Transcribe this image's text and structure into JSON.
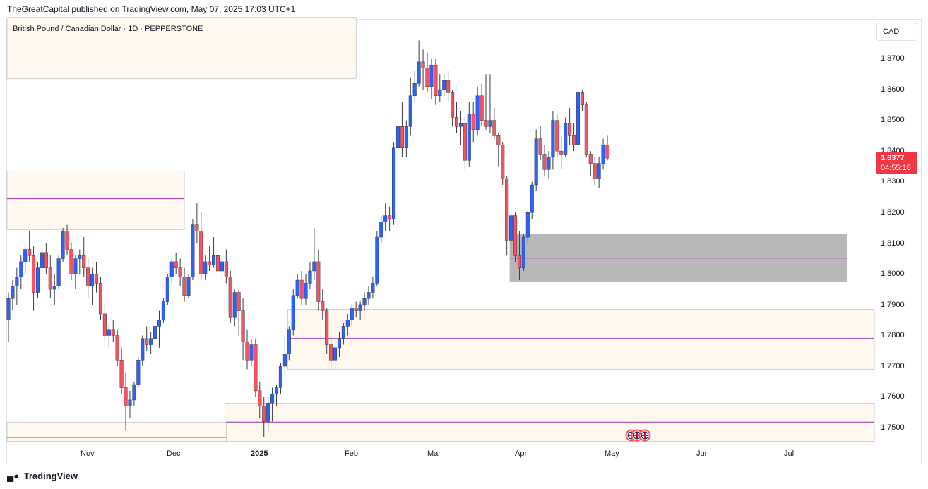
{
  "header": {
    "publish_text": "TheGreatCapital published on TradingView.com, May 07, 2025 17:03 UTC+1"
  },
  "symbol": {
    "title": "British Pound / Canadian Dollar · 1D · PEPPERSTONE"
  },
  "currency_button": {
    "label": "CAD"
  },
  "price_axis": {
    "labels": [
      "1.8700",
      "1.8600",
      "1.8500",
      "1.8400",
      "1.8300",
      "1.8200",
      "1.8100",
      "1.8000",
      "1.7900",
      "1.7800",
      "1.7700",
      "1.7600",
      "1.7500"
    ]
  },
  "time_axis": {
    "labels": [
      "Nov",
      "Dec",
      "2025",
      "Feb",
      "Mar",
      "Apr",
      "May",
      "Jun",
      "Jul"
    ]
  },
  "last_price": {
    "value": "1.8377",
    "countdown": "04:55:18",
    "color": "#f23645"
  },
  "footer": {
    "brand": "TradingView"
  },
  "colors": {
    "up": "#2962ff",
    "down": "#f7525f",
    "zone_fill": "#fff8ee",
    "demand_gray": "#b8b8bb",
    "level_line": "#9c27b0"
  },
  "chart_data": {
    "type": "candlestick",
    "title": "British Pound / Canadian Dollar · 1D · PEPPERSTONE",
    "ylim": [
      1.7455,
      1.8835
    ],
    "x_start": "2024-10-07",
    "candles": [
      [
        1.785,
        1.794,
        1.778,
        1.792
      ],
      [
        1.792,
        1.798,
        1.788,
        1.796
      ],
      [
        1.796,
        1.802,
        1.79,
        1.799
      ],
      [
        1.799,
        1.806,
        1.795,
        1.804
      ],
      [
        1.804,
        1.809,
        1.8,
        1.808
      ],
      [
        1.808,
        1.814,
        1.804,
        1.806
      ],
      [
        1.806,
        1.809,
        1.788,
        1.794
      ],
      [
        1.794,
        1.804,
        1.792,
        1.802
      ],
      [
        1.802,
        1.808,
        1.798,
        1.807
      ],
      [
        1.807,
        1.81,
        1.8,
        1.802
      ],
      [
        1.802,
        1.806,
        1.792,
        1.795
      ],
      [
        1.795,
        1.8,
        1.79,
        1.796
      ],
      [
        1.796,
        1.806,
        1.795,
        1.805
      ],
      [
        1.805,
        1.815,
        1.804,
        1.814
      ],
      [
        1.814,
        1.816,
        1.806,
        1.808
      ],
      [
        1.808,
        1.81,
        1.798,
        1.8
      ],
      [
        1.8,
        1.806,
        1.795,
        1.805
      ],
      [
        1.805,
        1.808,
        1.8,
        1.806
      ],
      [
        1.806,
        1.812,
        1.799,
        1.802
      ],
      [
        1.802,
        1.805,
        1.792,
        1.796
      ],
      [
        1.796,
        1.802,
        1.79,
        1.8
      ],
      [
        1.8,
        1.804,
        1.794,
        1.797
      ],
      [
        1.797,
        1.799,
        1.785,
        1.787
      ],
      [
        1.787,
        1.79,
        1.778,
        1.78
      ],
      [
        1.78,
        1.784,
        1.776,
        1.782
      ],
      [
        1.782,
        1.785,
        1.778,
        1.78
      ],
      [
        1.78,
        1.782,
        1.77,
        1.772
      ],
      [
        1.772,
        1.776,
        1.761,
        1.763
      ],
      [
        1.763,
        1.768,
        1.749,
        1.757
      ],
      [
        1.757,
        1.762,
        1.753,
        1.759
      ],
      [
        1.759,
        1.765,
        1.757,
        1.764
      ],
      [
        1.764,
        1.773,
        1.763,
        1.772
      ],
      [
        1.772,
        1.78,
        1.77,
        1.779
      ],
      [
        1.779,
        1.783,
        1.775,
        1.777
      ],
      [
        1.777,
        1.781,
        1.774,
        1.779
      ],
      [
        1.779,
        1.785,
        1.778,
        1.783
      ],
      [
        1.783,
        1.788,
        1.776,
        1.785
      ],
      [
        1.785,
        1.792,
        1.784,
        1.791
      ],
      [
        1.791,
        1.8,
        1.79,
        1.799
      ],
      [
        1.799,
        1.805,
        1.797,
        1.804
      ],
      [
        1.804,
        1.807,
        1.8,
        1.802
      ],
      [
        1.802,
        1.805,
        1.796,
        1.799
      ],
      [
        1.799,
        1.802,
        1.791,
        1.793
      ],
      [
        1.793,
        1.8,
        1.792,
        1.799
      ],
      [
        1.799,
        1.818,
        1.798,
        1.816
      ],
      [
        1.816,
        1.823,
        1.81,
        1.814
      ],
      [
        1.814,
        1.82,
        1.798,
        1.8
      ],
      [
        1.8,
        1.806,
        1.798,
        1.804
      ],
      [
        1.804,
        1.809,
        1.801,
        1.803
      ],
      [
        1.803,
        1.812,
        1.802,
        1.806
      ],
      [
        1.806,
        1.81,
        1.798,
        1.801
      ],
      [
        1.801,
        1.806,
        1.799,
        1.804
      ],
      [
        1.804,
        1.808,
        1.797,
        1.799
      ],
      [
        1.799,
        1.801,
        1.784,
        1.786
      ],
      [
        1.786,
        1.795,
        1.783,
        1.794
      ],
      [
        1.794,
        1.795,
        1.78,
        1.788
      ],
      [
        1.788,
        1.792,
        1.772,
        1.778
      ],
      [
        1.778,
        1.782,
        1.769,
        1.772
      ],
      [
        1.772,
        1.779,
        1.77,
        1.777
      ],
      [
        1.777,
        1.779,
        1.76,
        1.762
      ],
      [
        1.762,
        1.765,
        1.753,
        1.757
      ],
      [
        1.757,
        1.76,
        1.747,
        1.752
      ],
      [
        1.752,
        1.76,
        1.749,
        1.758
      ],
      [
        1.758,
        1.763,
        1.752,
        1.761
      ],
      [
        1.761,
        1.764,
        1.757,
        1.763
      ],
      [
        1.763,
        1.771,
        1.761,
        1.77
      ],
      [
        1.77,
        1.78,
        1.766,
        1.774
      ],
      [
        1.774,
        1.783,
        1.772,
        1.782
      ],
      [
        1.782,
        1.795,
        1.78,
        1.793
      ],
      [
        1.793,
        1.8,
        1.792,
        1.798
      ],
      [
        1.798,
        1.801,
        1.79,
        1.792
      ],
      [
        1.792,
        1.8,
        1.79,
        1.797
      ],
      [
        1.797,
        1.804,
        1.795,
        1.801
      ],
      [
        1.801,
        1.815,
        1.798,
        1.804
      ],
      [
        1.804,
        1.808,
        1.788,
        1.791
      ],
      [
        1.791,
        1.795,
        1.785,
        1.788
      ],
      [
        1.788,
        1.789,
        1.774,
        1.777
      ],
      [
        1.777,
        1.779,
        1.769,
        1.772
      ],
      [
        1.772,
        1.779,
        1.768,
        1.776
      ],
      [
        1.776,
        1.781,
        1.773,
        1.779
      ],
      [
        1.779,
        1.784,
        1.777,
        1.783
      ],
      [
        1.783,
        1.787,
        1.78,
        1.785
      ],
      [
        1.785,
        1.79,
        1.783,
        1.789
      ],
      [
        1.789,
        1.791,
        1.786,
        1.788
      ],
      [
        1.788,
        1.791,
        1.785,
        1.79
      ],
      [
        1.79,
        1.794,
        1.788,
        1.792
      ],
      [
        1.792,
        1.796,
        1.79,
        1.794
      ],
      [
        1.794,
        1.799,
        1.792,
        1.797
      ],
      [
        1.797,
        1.814,
        1.796,
        1.812
      ],
      [
        1.812,
        1.819,
        1.81,
        1.817
      ],
      [
        1.817,
        1.823,
        1.814,
        1.819
      ],
      [
        1.819,
        1.822,
        1.814,
        1.818
      ],
      [
        1.818,
        1.843,
        1.816,
        1.841
      ],
      [
        1.841,
        1.85,
        1.838,
        1.848
      ],
      [
        1.848,
        1.856,
        1.838,
        1.841
      ],
      [
        1.841,
        1.85,
        1.838,
        1.848
      ],
      [
        1.848,
        1.864,
        1.845,
        1.858
      ],
      [
        1.858,
        1.866,
        1.856,
        1.862
      ],
      [
        1.862,
        1.876,
        1.861,
        1.869
      ],
      [
        1.869,
        1.873,
        1.86,
        1.867
      ],
      [
        1.867,
        1.872,
        1.859,
        1.861
      ],
      [
        1.861,
        1.87,
        1.857,
        1.868
      ],
      [
        1.868,
        1.87,
        1.855,
        1.858
      ],
      [
        1.858,
        1.865,
        1.856,
        1.86
      ],
      [
        1.86,
        1.865,
        1.858,
        1.863
      ],
      [
        1.863,
        1.866,
        1.856,
        1.859
      ],
      [
        1.859,
        1.86,
        1.848,
        1.851
      ],
      [
        1.851,
        1.856,
        1.846,
        1.848
      ],
      [
        1.848,
        1.853,
        1.842,
        1.849
      ],
      [
        1.849,
        1.851,
        1.834,
        1.837
      ],
      [
        1.837,
        1.856,
        1.835,
        1.852
      ],
      [
        1.852,
        1.856,
        1.843,
        1.847
      ],
      [
        1.847,
        1.861,
        1.845,
        1.858
      ],
      [
        1.858,
        1.862,
        1.848,
        1.85
      ],
      [
        1.85,
        1.865,
        1.847,
        1.848
      ],
      [
        1.848,
        1.865,
        1.846,
        1.85
      ],
      [
        1.85,
        1.854,
        1.844,
        1.845
      ],
      [
        1.845,
        1.846,
        1.835,
        1.842
      ],
      [
        1.842,
        1.843,
        1.829,
        1.831
      ],
      [
        1.831,
        1.832,
        1.806,
        1.811
      ],
      [
        1.811,
        1.82,
        1.806,
        1.819
      ],
      [
        1.819,
        1.82,
        1.804,
        1.806
      ],
      [
        1.806,
        1.814,
        1.798,
        1.802
      ],
      [
        1.802,
        1.813,
        1.801,
        1.812
      ],
      [
        1.812,
        1.821,
        1.81,
        1.82
      ],
      [
        1.82,
        1.83,
        1.818,
        1.829
      ],
      [
        1.829,
        1.847,
        1.827,
        1.844
      ],
      [
        1.844,
        1.848,
        1.837,
        1.839
      ],
      [
        1.839,
        1.842,
        1.832,
        1.834
      ],
      [
        1.834,
        1.84,
        1.831,
        1.838
      ],
      [
        1.838,
        1.853,
        1.834,
        1.85
      ],
      [
        1.85,
        1.852,
        1.838,
        1.84
      ],
      [
        1.84,
        1.845,
        1.834,
        1.839
      ],
      [
        1.839,
        1.851,
        1.838,
        1.849
      ],
      [
        1.849,
        1.854,
        1.842,
        1.845
      ],
      [
        1.845,
        1.849,
        1.84,
        1.842
      ],
      [
        1.842,
        1.86,
        1.841,
        1.859
      ],
      [
        1.859,
        1.86,
        1.853,
        1.855
      ],
      [
        1.855,
        1.856,
        1.838,
        1.839
      ],
      [
        1.839,
        1.84,
        1.832,
        1.836
      ],
      [
        1.836,
        1.838,
        1.829,
        1.831
      ],
      [
        1.831,
        1.838,
        1.828,
        1.836
      ],
      [
        1.836,
        1.844,
        1.834,
        1.842
      ],
      [
        1.842,
        1.845,
        1.837,
        1.8377
      ]
    ],
    "zones": [
      {
        "top": 1.8835,
        "bottom": 1.8635,
        "start": 0,
        "end": 83,
        "fill": "#fff8ee"
      },
      {
        "top": 1.8335,
        "bottom": 1.8145,
        "start": 0,
        "end": 42,
        "fill": "#fff8ee",
        "line": 1.8245
      },
      {
        "top": 1.813,
        "bottom": 1.7975,
        "start": 120,
        "end": 150,
        "fill": "#b8b8bb",
        "line": 1.8052
      },
      {
        "top": 1.7885,
        "bottom": 1.769,
        "start": 67,
        "end": 155,
        "fill": "#fff8ee",
        "line": 1.779
      },
      {
        "top": 1.758,
        "bottom": 1.7455,
        "start": 52,
        "end": 155,
        "fill": "#fff8ee",
        "line": 1.7518
      },
      {
        "top": 1.7518,
        "bottom": 1.7455,
        "start": 0,
        "end": 52,
        "fill": "#fff8ee",
        "line": 1.7468
      }
    ]
  }
}
